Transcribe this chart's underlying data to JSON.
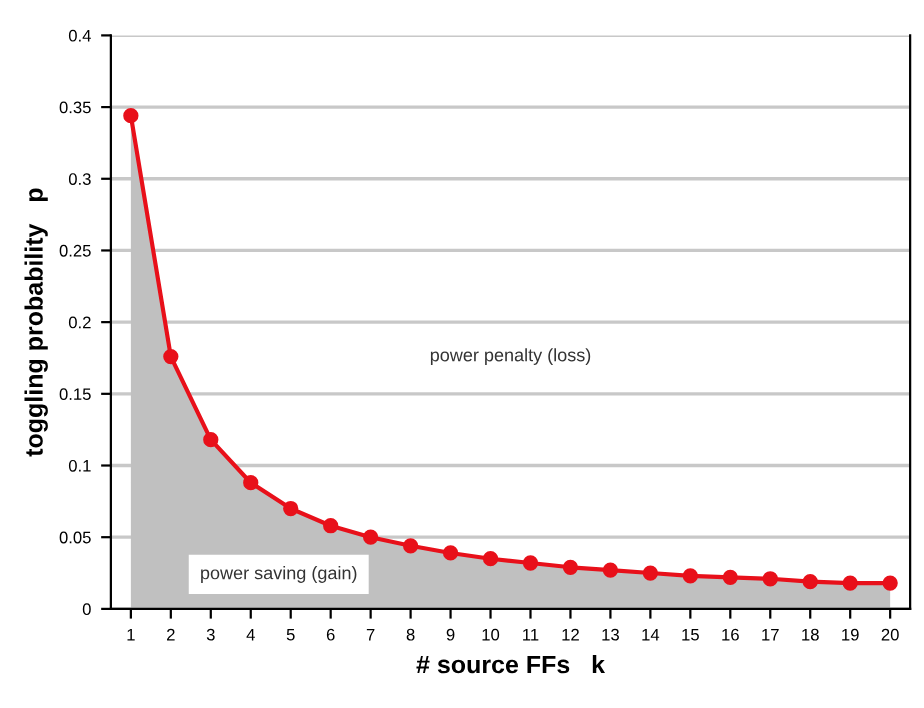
{
  "chart_data": {
    "type": "line",
    "xlabel": "# source FFs   k",
    "ylabel": "toggling probability   p",
    "categories": [
      "1",
      "2",
      "3",
      "4",
      "5",
      "6",
      "7",
      "8",
      "9",
      "10",
      "11",
      "12",
      "13",
      "14",
      "15",
      "16",
      "17",
      "18",
      "19",
      "20"
    ],
    "series": [
      {
        "color": "#e8101a",
        "values": [
          0.344,
          0.176,
          0.118,
          0.088,
          0.07,
          0.058,
          0.05,
          0.044,
          0.039,
          0.035,
          0.032,
          0.029,
          0.027,
          0.025,
          0.023,
          0.022,
          0.021,
          0.019,
          0.018,
          0.018
        ],
        "lower": [
          0,
          0,
          0,
          0,
          0,
          0,
          0,
          0,
          0,
          0,
          0,
          0,
          0,
          0,
          0,
          0,
          0,
          0,
          0,
          0
        ],
        "upper": [
          0.344,
          0.176,
          0.118,
          0.088,
          0.07,
          0.058,
          0.05,
          0.044,
          0.039,
          0.035,
          0.032,
          0.029,
          0.027,
          0.025,
          0.023,
          0.022,
          0.021,
          0.019,
          0.018,
          0.018
        ]
      }
    ],
    "annotations": [
      "power penalty (loss)",
      "power saving (gain)"
    ],
    "ylim": [
      0,
      0.4
    ],
    "yticks": [
      0,
      0.05,
      0.1,
      0.15,
      0.2,
      0.25,
      0.3,
      0.35,
      0.4
    ],
    "grid": "y",
    "marker": "circle",
    "line_style": "solid",
    "legend": false
  }
}
